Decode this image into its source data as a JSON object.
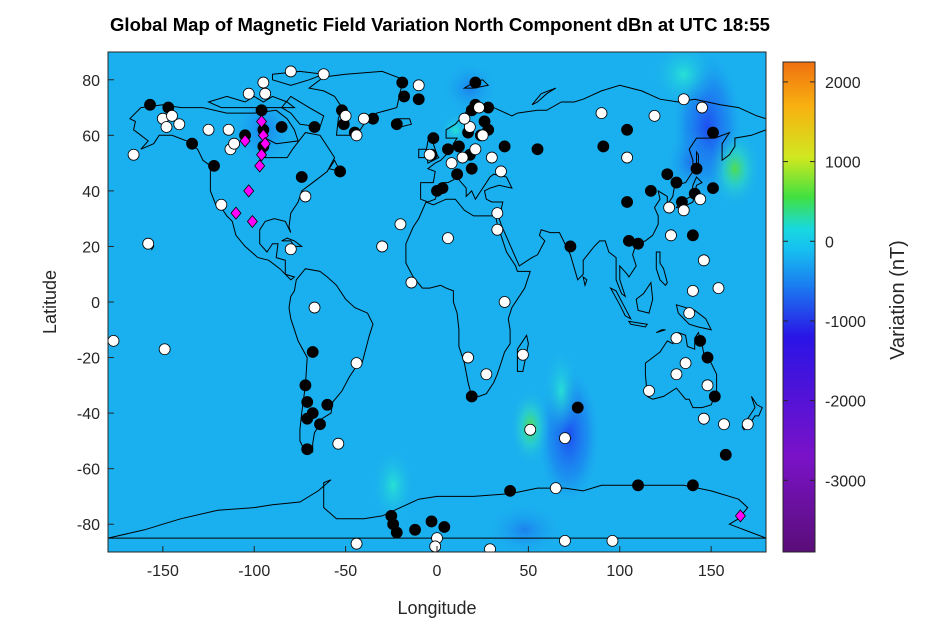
{
  "chart_data": {
    "type": "scatter",
    "title": "Global Map of Magnetic Field Variation North Component dBn at UTC 18:55",
    "xlabel": "Longitude",
    "ylabel": "Latitude",
    "xlim": [
      -180,
      180
    ],
    "ylim": [
      -90,
      90
    ],
    "xticks": [
      "-150",
      "-100",
      "-50",
      "0",
      "50",
      "100",
      "150"
    ],
    "yticks": [
      "80",
      "60",
      "40",
      "20",
      "0",
      "-20",
      "-40",
      "-60",
      "-80"
    ],
    "background": "filled contour map of dBn over world coastline",
    "colorbar": {
      "label": "Variation (nT)",
      "range": [
        -3900,
        2250
      ],
      "ticks": [
        "2000",
        "1000",
        "0",
        "-1000",
        "-2000",
        "-3000"
      ],
      "colormap": [
        "#5a0e78",
        "#7a12c8",
        "#2a14e6",
        "#1a7ef0",
        "#16c0f0",
        "#18d8e0",
        "#40e040",
        "#d0e820",
        "#f8b010",
        "#f07010"
      ]
    },
    "series": [
      {
        "marker": "black-circle",
        "color": "#000000",
        "points": [
          [
            -157,
            71
          ],
          [
            -147,
            70
          ],
          [
            -134,
            57
          ],
          [
            -122,
            49
          ],
          [
            -105,
            60
          ],
          [
            -95,
            62
          ],
          [
            -95,
            56
          ],
          [
            -96,
            69
          ],
          [
            -85,
            63
          ],
          [
            -74,
            45
          ],
          [
            -67,
            63
          ],
          [
            -53,
            47
          ],
          [
            -52,
            69
          ],
          [
            -51,
            64
          ],
          [
            -45,
            61
          ],
          [
            -35,
            66
          ],
          [
            -22,
            64
          ],
          [
            -18,
            74
          ],
          [
            -19,
            79
          ],
          [
            -10,
            73
          ],
          [
            -3,
            53
          ],
          [
            -2,
            59
          ],
          [
            0,
            40
          ],
          [
            3,
            41
          ],
          [
            6,
            55
          ],
          [
            11,
            46
          ],
          [
            12,
            56
          ],
          [
            17,
            61
          ],
          [
            18,
            53
          ],
          [
            19,
            69
          ],
          [
            19,
            48
          ],
          [
            21,
            79
          ],
          [
            24,
            60
          ],
          [
            26,
            65
          ],
          [
            28,
            62
          ],
          [
            37,
            56
          ],
          [
            55,
            55
          ],
          [
            73,
            20
          ],
          [
            91,
            56
          ],
          [
            104,
            36
          ],
          [
            104,
            62
          ],
          [
            105,
            22
          ],
          [
            110,
            21
          ],
          [
            117,
            40
          ],
          [
            126,
            46
          ],
          [
            131,
            43
          ],
          [
            134,
            36
          ],
          [
            140,
            24
          ],
          [
            141,
            39
          ],
          [
            142,
            48
          ],
          [
            151,
            41
          ],
          [
            151,
            61
          ],
          [
            144,
            -14
          ],
          [
            148,
            -20
          ],
          [
            152,
            -34
          ],
          [
            158,
            -55
          ],
          [
            140,
            -66
          ],
          [
            110,
            -66
          ],
          [
            77,
            -38
          ],
          [
            40,
            -68
          ],
          [
            19,
            -34
          ],
          [
            -24,
            -80
          ],
          [
            -25,
            -77
          ],
          [
            -3,
            -79
          ],
          [
            4,
            -81
          ],
          [
            -12,
            -82
          ],
          [
            -22,
            -83
          ],
          [
            -68,
            -18
          ],
          [
            -68,
            -40
          ],
          [
            -71,
            -36
          ],
          [
            -71,
            -42
          ],
          [
            -72,
            -30
          ],
          [
            -71,
            -53
          ],
          [
            -60,
            -37
          ],
          [
            -64,
            -44
          ],
          [
            21,
            71
          ],
          [
            28,
            70
          ]
        ]
      },
      {
        "marker": "white-circle",
        "color": "#ffffff",
        "points": [
          [
            -150,
            66
          ],
          [
            -145,
            67
          ],
          [
            -148,
            63
          ],
          [
            -141,
            64
          ],
          [
            -125,
            62
          ],
          [
            -114,
            62
          ],
          [
            -113,
            55
          ],
          [
            -111,
            57
          ],
          [
            -103,
            75
          ],
          [
            -94,
            75
          ],
          [
            -80,
            83
          ],
          [
            -95,
            79
          ],
          [
            -62,
            82
          ],
          [
            -50,
            67
          ],
          [
            -40,
            66
          ],
          [
            -44,
            60
          ],
          [
            -72,
            38
          ],
          [
            -118,
            35
          ],
          [
            -158,
            21
          ],
          [
            -166,
            53
          ],
          [
            -177,
            -14
          ],
          [
            -149,
            -17
          ],
          [
            -80,
            19
          ],
          [
            -67,
            -2
          ],
          [
            -54,
            -51
          ],
          [
            -44,
            -22
          ],
          [
            -30,
            20
          ],
          [
            -14,
            7
          ],
          [
            -10,
            78
          ],
          [
            -4,
            53
          ],
          [
            0,
            -85
          ],
          [
            -1,
            -88
          ],
          [
            -44,
            -87
          ],
          [
            8,
            50
          ],
          [
            14,
            52
          ],
          [
            18,
            63
          ],
          [
            21,
            55
          ],
          [
            25,
            60
          ],
          [
            23,
            70
          ],
          [
            15,
            66
          ],
          [
            30,
            52
          ],
          [
            35,
            47
          ],
          [
            33,
            32
          ],
          [
            33,
            26
          ],
          [
            37,
            0
          ],
          [
            47,
            -19
          ],
          [
            27,
            -26
          ],
          [
            17,
            -20
          ],
          [
            6,
            23
          ],
          [
            -20,
            28
          ],
          [
            51,
            -46
          ],
          [
            70,
            -49
          ],
          [
            65,
            -67
          ],
          [
            70,
            -86
          ],
          [
            96,
            -86
          ],
          [
            29,
            -89
          ],
          [
            90,
            68
          ],
          [
            104,
            52
          ],
          [
            119,
            67
          ],
          [
            145,
            70
          ],
          [
            135,
            33
          ],
          [
            148,
            -30
          ],
          [
            146,
            -42
          ],
          [
            157,
            -44
          ],
          [
            140,
            4
          ],
          [
            131,
            -13
          ],
          [
            136,
            -22
          ],
          [
            116,
            -32
          ],
          [
            128,
            24
          ],
          [
            146,
            15
          ],
          [
            138,
            -4
          ],
          [
            154,
            5
          ],
          [
            170,
            -44
          ],
          [
            131,
            -26
          ],
          [
            127,
            34
          ],
          [
            144,
            37
          ],
          [
            135,
            73
          ]
        ]
      },
      {
        "marker": "magenta-diamond",
        "color": "#ff00ff",
        "points": [
          [
            -96,
            65
          ],
          [
            -95,
            60
          ],
          [
            -94,
            57
          ],
          [
            -96,
            53
          ],
          [
            -97,
            49
          ],
          [
            -105,
            58
          ],
          [
            -103,
            40
          ],
          [
            -110,
            32
          ],
          [
            -101,
            29
          ],
          [
            166,
            -77
          ]
        ]
      }
    ]
  },
  "colors": {
    "ocean_base": "#1ab0ef",
    "coast": "#000000"
  }
}
